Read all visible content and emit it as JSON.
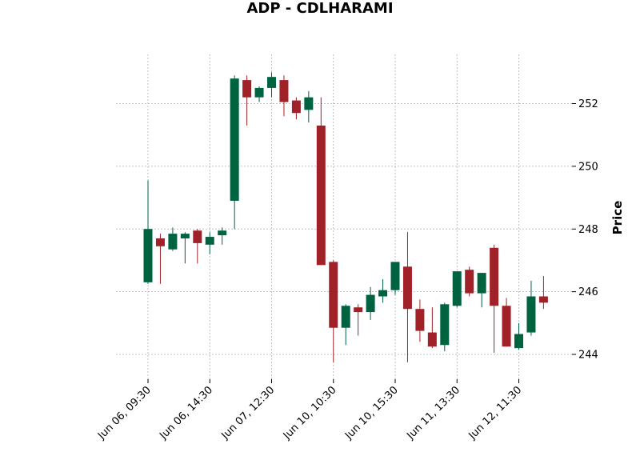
{
  "chart_data": {
    "type": "candlestick",
    "title": "ADP - CDLHARAMI",
    "xlabel": "",
    "ylabel": "Price",
    "ylim": [
      243.3,
      253.5
    ],
    "y_ticks": [
      244,
      246,
      248,
      250,
      252
    ],
    "grid": true,
    "x_tick_labels": [
      {
        "index": 0,
        "label": "Jun 06, 09:30"
      },
      {
        "index": 5,
        "label": "Jun 06, 14:30"
      },
      {
        "index": 10,
        "label": "Jun 07, 12:30"
      },
      {
        "index": 15,
        "label": "Jun 10, 10:30"
      },
      {
        "index": 20,
        "label": "Jun 10, 15:30"
      },
      {
        "index": 25,
        "label": "Jun 11, 13:30"
      },
      {
        "index": 30,
        "label": "Jun 12, 11:30"
      }
    ],
    "colors": {
      "up": "#006340",
      "down": "#a02128"
    },
    "candles": [
      {
        "open": 246.3,
        "high": 249.55,
        "low": 246.25,
        "close": 248.0
      },
      {
        "open": 247.7,
        "high": 247.85,
        "low": 246.25,
        "close": 247.45
      },
      {
        "open": 247.35,
        "high": 248.05,
        "low": 247.3,
        "close": 247.85
      },
      {
        "open": 247.7,
        "high": 247.9,
        "low": 246.9,
        "close": 247.85
      },
      {
        "open": 247.95,
        "high": 248.0,
        "low": 246.9,
        "close": 247.55
      },
      {
        "open": 247.5,
        "high": 247.9,
        "low": 247.2,
        "close": 247.75
      },
      {
        "open": 247.8,
        "high": 248.05,
        "low": 247.5,
        "close": 247.95
      },
      {
        "open": 248.9,
        "high": 252.9,
        "low": 248.0,
        "close": 252.8
      },
      {
        "open": 252.75,
        "high": 252.9,
        "low": 251.3,
        "close": 252.2
      },
      {
        "open": 252.2,
        "high": 252.55,
        "low": 252.05,
        "close": 252.5
      },
      {
        "open": 252.5,
        "high": 253.0,
        "low": 252.2,
        "close": 252.85
      },
      {
        "open": 252.75,
        "high": 252.9,
        "low": 251.6,
        "close": 252.05
      },
      {
        "open": 252.1,
        "high": 252.2,
        "low": 251.5,
        "close": 251.7
      },
      {
        "open": 251.8,
        "high": 252.4,
        "low": 251.4,
        "close": 252.2
      },
      {
        "open": 251.3,
        "high": 252.2,
        "low": 246.85,
        "close": 246.85
      },
      {
        "open": 246.95,
        "high": 247.0,
        "low": 243.75,
        "close": 244.85
      },
      {
        "open": 244.85,
        "high": 245.6,
        "low": 244.3,
        "close": 245.55
      },
      {
        "open": 245.5,
        "high": 245.6,
        "low": 244.6,
        "close": 245.35
      },
      {
        "open": 245.35,
        "high": 246.15,
        "low": 245.1,
        "close": 245.9
      },
      {
        "open": 245.85,
        "high": 246.4,
        "low": 245.65,
        "close": 246.05
      },
      {
        "open": 246.05,
        "high": 246.95,
        "low": 245.9,
        "close": 246.95
      },
      {
        "open": 246.8,
        "high": 247.9,
        "low": 243.75,
        "close": 245.45
      },
      {
        "open": 245.45,
        "high": 245.75,
        "low": 244.4,
        "close": 244.75
      },
      {
        "open": 244.7,
        "high": 245.5,
        "low": 244.2,
        "close": 244.25
      },
      {
        "open": 244.3,
        "high": 245.65,
        "low": 244.1,
        "close": 245.6
      },
      {
        "open": 245.55,
        "high": 246.65,
        "low": 245.5,
        "close": 246.65
      },
      {
        "open": 246.7,
        "high": 246.8,
        "low": 245.85,
        "close": 245.95
      },
      {
        "open": 245.95,
        "high": 246.6,
        "low": 245.5,
        "close": 246.6
      },
      {
        "open": 247.4,
        "high": 247.5,
        "low": 244.05,
        "close": 245.55
      },
      {
        "open": 245.55,
        "high": 245.8,
        "low": 244.25,
        "close": 244.25
      },
      {
        "open": 244.2,
        "high": 245.0,
        "low": 244.15,
        "close": 244.65
      },
      {
        "open": 244.7,
        "high": 246.35,
        "low": 244.6,
        "close": 245.85
      },
      {
        "open": 245.85,
        "high": 246.5,
        "low": 245.45,
        "close": 245.65
      }
    ]
  }
}
